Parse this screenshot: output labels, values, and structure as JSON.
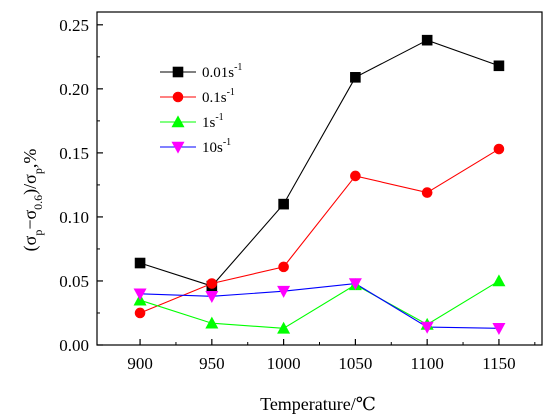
{
  "chart_data": {
    "type": "line",
    "xlabel": "Temperature/℃",
    "ylabel": {
      "open": "(σ",
      "sub1": "p",
      "minus": "−σ",
      "sub2": "0.6",
      "close": ")/σ",
      "sub3": "p",
      "unit": ",%"
    },
    "x": [
      900,
      950,
      1000,
      1050,
      1100,
      1150
    ],
    "xlim": [
      870,
      1180
    ],
    "ylim": [
      0.0,
      0.26
    ],
    "xticks": [
      "900",
      "950",
      "1000",
      "1050",
      "1100",
      "1150"
    ],
    "yticks": [
      "0.00",
      "0.05",
      "0.10",
      "0.15",
      "0.20",
      "0.25"
    ],
    "grid": false,
    "legend_position": "top-left",
    "series": [
      {
        "name": "0.01s",
        "name_sup": "-1",
        "color": "#000000",
        "marker": "square",
        "values": [
          0.064,
          0.046,
          0.11,
          0.209,
          0.238,
          0.218
        ]
      },
      {
        "name": "0.1s",
        "name_sup": "-1",
        "color": "#ff0000",
        "marker": "circle",
        "values": [
          0.025,
          0.048,
          0.061,
          0.132,
          0.119,
          0.153
        ]
      },
      {
        "name": "1s",
        "name_sup": "-1",
        "color": "#00ff00",
        "marker": "triangle-up",
        "values": [
          0.035,
          0.017,
          0.013,
          0.047,
          0.016,
          0.05
        ]
      },
      {
        "name": "10s",
        "name_sup": "-1",
        "color": "#0000ff",
        "line_color": "#0000ff",
        "marker_color": "#ff00ff",
        "marker": "triangle-down",
        "values": [
          0.04,
          0.038,
          0.042,
          0.048,
          0.014,
          0.013
        ]
      }
    ]
  }
}
